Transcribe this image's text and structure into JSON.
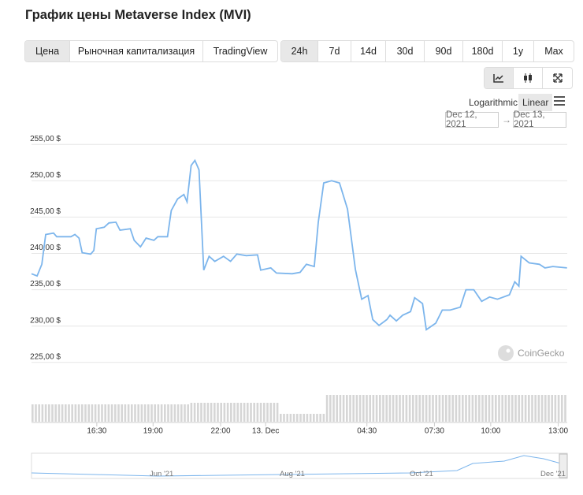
{
  "header": {
    "title": "График цены Metaverse Index (MVI)"
  },
  "tabs": [
    "Цена",
    "Рыночная капитализация",
    "TradingView"
  ],
  "ranges": [
    "24h",
    "7d",
    "14d",
    "30d",
    "90d",
    "180d",
    "1y",
    "Max"
  ],
  "scale_options": [
    "Logarithmic",
    "Linear"
  ],
  "date_range": {
    "from": "Dec 12, 2021",
    "arrow": "→",
    "to": "Dec 13, 2021"
  },
  "watermark": "CoinGecko",
  "navigator_labels": [
    "Jun '21",
    "Aug '21",
    "Oct '21",
    "Dec '21"
  ],
  "chart_data": {
    "type": "line",
    "color": "#7cb5ec",
    "grid": true,
    "x": [
      13.6,
      13.85,
      14.06,
      14.23,
      14.58,
      14.72,
      15.35,
      15.53,
      15.71,
      15.85,
      16.23,
      16.37,
      16.48,
      16.83,
      17.04,
      17.35,
      17.53,
      17.99,
      18.16,
      18.44,
      18.69,
      19.04,
      19.21,
      19.64,
      19.81,
      20.09,
      20.37,
      20.51,
      20.69,
      20.86,
      21.04,
      21.25,
      21.49,
      21.74,
      22.13,
      22.44,
      22.72,
      23.14,
      23.64,
      23.78,
      24.23,
      24.48,
      25.18,
      25.53,
      25.81,
      26.16,
      26.34,
      26.58,
      26.93,
      27.28,
      27.64,
      27.99,
      28.27,
      28.55,
      28.76,
      29.04,
      29.39,
      29.53,
      29.81,
      30.09,
      30.44,
      30.62,
      30.97,
      31.14,
      31.56,
      31.85,
      32.2,
      32.65,
      32.9,
      33.25,
      33.6,
      33.95,
      34.3,
      34.83,
      35.07,
      35.25,
      35.35,
      35.71,
      36.16,
      36.41,
      36.76,
      37.39
    ],
    "values": [
      237.2,
      236.9,
      238.5,
      242.6,
      242.8,
      242.3,
      242.3,
      242.6,
      242.1,
      240.1,
      239.9,
      240.4,
      243.4,
      243.6,
      244.2,
      244.3,
      243.2,
      243.4,
      241.8,
      240.9,
      242.1,
      241.8,
      242.3,
      242.3,
      245.9,
      247.5,
      248.1,
      247.1,
      252.1,
      252.8,
      251.5,
      237.7,
      239.6,
      238.9,
      239.6,
      238.9,
      239.9,
      239.7,
      239.8,
      237.7,
      238.0,
      237.3,
      237.2,
      237.4,
      238.5,
      238.2,
      244.3,
      249.7,
      250.0,
      249.7,
      246.1,
      237.8,
      233.7,
      234.2,
      230.9,
      230.1,
      230.9,
      231.5,
      230.7,
      231.5,
      232.0,
      233.9,
      233.1,
      229.5,
      230.4,
      232.2,
      232.2,
      232.6,
      235.0,
      235.0,
      233.4,
      234.0,
      233.7,
      234.3,
      236.1,
      235.5,
      239.6,
      238.7,
      238.5,
      238.0,
      238.2,
      238.0
    ],
    "xlim": [
      13.6,
      37.4
    ],
    "xticks": [
      {
        "value": 16.5,
        "label": "16:30"
      },
      {
        "value": 19,
        "label": "19:00"
      },
      {
        "value": 22,
        "label": "22:00"
      },
      {
        "value": 24,
        "label": "13. Dec"
      },
      {
        "value": 28.5,
        "label": "04:30"
      },
      {
        "value": 31.5,
        "label": "07:30"
      },
      {
        "value": 34,
        "label": "10:00"
      },
      {
        "value": 37,
        "label": "13:00"
      }
    ],
    "ylim": [
      224,
      256
    ],
    "yticks": [
      {
        "value": 225,
        "label": "225,00 $"
      },
      {
        "value": 230,
        "label": "230,00 $"
      },
      {
        "value": 235,
        "label": "235,00 $"
      },
      {
        "value": 240,
        "label": "240,00 $"
      },
      {
        "value": 245,
        "label": "245,00 $"
      },
      {
        "value": 250,
        "label": "250,00 $"
      },
      {
        "value": 255,
        "label": "255,00 $"
      }
    ]
  }
}
